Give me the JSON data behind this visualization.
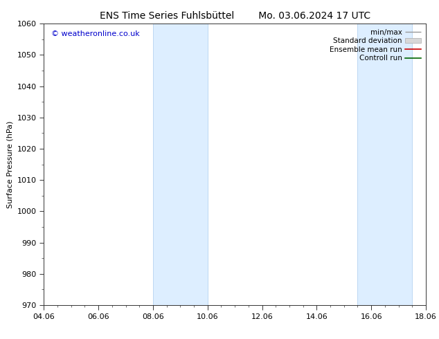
{
  "title_left": "ENS Time Series Fuhlsbüttel",
  "title_right": "Mo. 03.06.2024 17 UTC",
  "ylabel": "Surface Pressure (hPa)",
  "watermark": "© weatheronline.co.uk",
  "watermark_color": "#0000cc",
  "xlim_start": 4.06,
  "xlim_end": 18.06,
  "ylim_bottom": 970,
  "ylim_top": 1060,
  "yticks": [
    970,
    980,
    990,
    1000,
    1010,
    1020,
    1030,
    1040,
    1050,
    1060
  ],
  "xticks": [
    4.06,
    6.06,
    8.06,
    10.06,
    12.06,
    14.06,
    16.06,
    18.06
  ],
  "xtick_labels": [
    "04.06",
    "06.06",
    "08.06",
    "10.06",
    "12.06",
    "14.06",
    "16.06",
    "18.06"
  ],
  "shaded_bands": [
    {
      "x_start": 8.06,
      "x_end": 10.06
    },
    {
      "x_start": 15.56,
      "x_end": 17.56
    }
  ],
  "shaded_color": "#ddeeff",
  "shaded_edge_color": "#aaccee",
  "background_color": "#ffffff",
  "title_fontsize": 10,
  "label_fontsize": 8,
  "tick_fontsize": 8,
  "watermark_fontsize": 8,
  "legend_fontsize": 7.5
}
